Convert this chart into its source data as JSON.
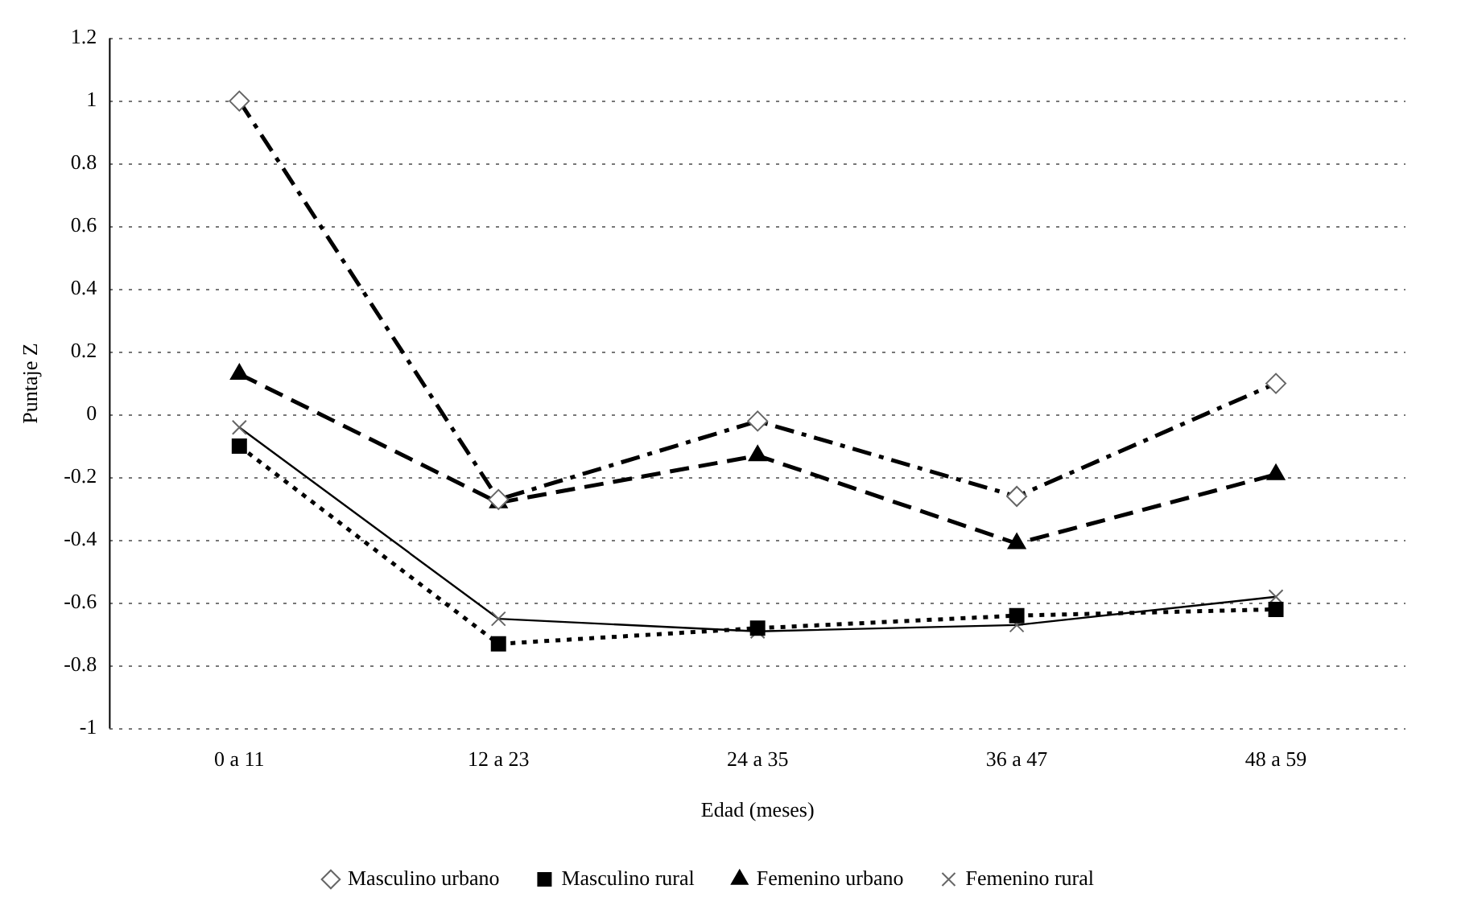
{
  "chart_data": {
    "type": "line",
    "xlabel": "Edad (meses)",
    "ylabel": "Puntaje Z",
    "categories": [
      "0 a 11",
      "12 a 23",
      "24 a 35",
      "36 a 47",
      "48 a 59"
    ],
    "series": [
      {
        "name": "Masculino urbano",
        "color": "#000000",
        "values": [
          1.0,
          -0.27,
          -0.02,
          -0.26,
          0.1
        ],
        "marker": "diamond",
        "line_style": "dashdot"
      },
      {
        "name": "Masculino rural",
        "color": "#000000",
        "values": [
          -0.1,
          -0.73,
          -0.68,
          -0.64,
          -0.62
        ],
        "marker": "square",
        "line_style": "dotted"
      },
      {
        "name": "Femenino urbano",
        "color": "#000000",
        "values": [
          0.13,
          -0.28,
          -0.13,
          -0.41,
          -0.19
        ],
        "marker": "triangle",
        "line_style": "dashed"
      },
      {
        "name": "Femenino rural",
        "color": "#000000",
        "values": [
          -0.04,
          -0.65,
          -0.69,
          -0.67,
          -0.58
        ],
        "marker": "cross",
        "line_style": "solid"
      }
    ],
    "ylim": [
      -1,
      1.2
    ],
    "yticks": [
      -1,
      -0.8,
      -0.6,
      -0.4,
      -0.2,
      0,
      0.2,
      0.4,
      0.6,
      0.8,
      1,
      1.2
    ],
    "grid": "y",
    "legend": "bottom"
  }
}
